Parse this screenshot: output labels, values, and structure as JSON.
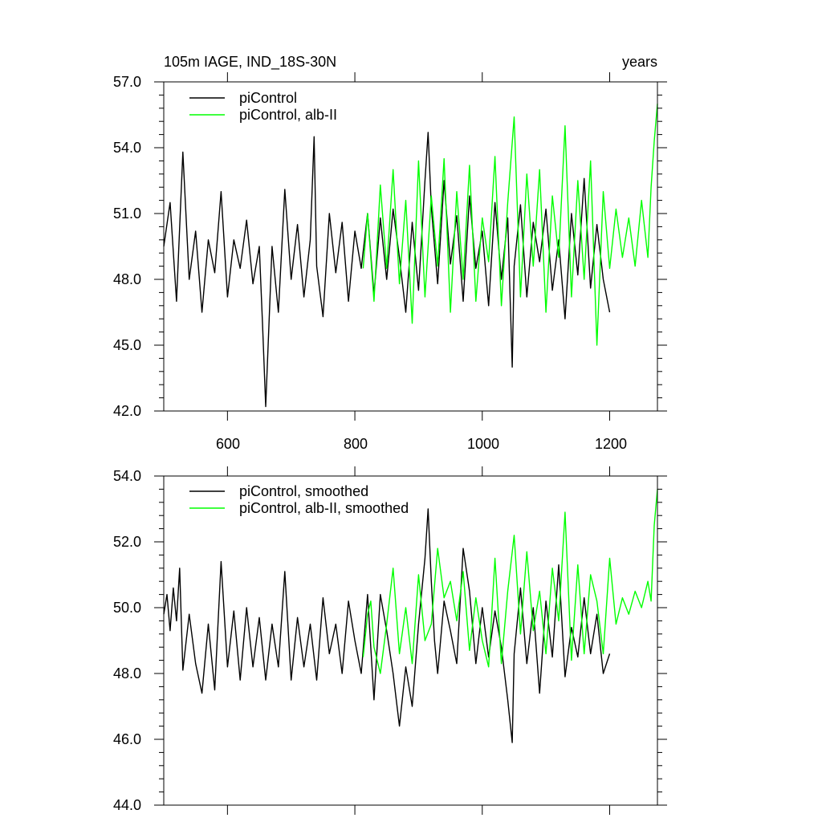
{
  "top_panel": {
    "left_title": "105m IAGE, IND_18S-30N",
    "right_title": "years",
    "y_tick_labels": [
      "42.0",
      "45.0",
      "48.0",
      "51.0",
      "54.0",
      "57.0"
    ],
    "x_tick_labels": [
      "600",
      "800",
      "1000",
      "1200"
    ],
    "legend": [
      "piControl",
      "piControl, alb-II"
    ]
  },
  "bottom_panel": {
    "y_tick_labels": [
      "44.0",
      "46.0",
      "48.0",
      "50.0",
      "52.0",
      "54.0"
    ],
    "legend": [
      "piControl, smoothed",
      "piControl, alb-II, smoothed"
    ]
  },
  "colors": {
    "black": "#000000",
    "green": "#00ff00"
  },
  "chart_data": [
    {
      "type": "line",
      "title": "105m IAGE, IND_18S-30N",
      "right_title": "years",
      "xlim": [
        500,
        1275
      ],
      "ylim": [
        42.0,
        57.0
      ],
      "x_ticks": [
        600,
        800,
        1000,
        1200
      ],
      "y_ticks": [
        42.0,
        45.0,
        48.0,
        51.0,
        54.0,
        57.0
      ],
      "legend_position": "top-left",
      "series": [
        {
          "name": "piControl",
          "color": "#000000",
          "x": [
            500,
            510,
            520,
            530,
            540,
            550,
            560,
            570,
            580,
            590,
            600,
            610,
            620,
            630,
            640,
            650,
            655,
            660,
            670,
            680,
            690,
            700,
            710,
            720,
            730,
            736,
            740,
            750,
            760,
            770,
            780,
            790,
            800,
            810,
            820,
            830,
            840,
            850,
            860,
            870,
            880,
            890,
            900,
            910,
            915,
            920,
            930,
            940,
            950,
            960,
            970,
            980,
            990,
            1000,
            1010,
            1020,
            1030,
            1040,
            1047,
            1050,
            1060,
            1070,
            1080,
            1090,
            1100,
            1110,
            1120,
            1130,
            1140,
            1150,
            1160,
            1170,
            1180,
            1190,
            1200
          ],
          "y": [
            49.5,
            51.5,
            47.0,
            53.8,
            48.0,
            50.2,
            46.5,
            49.8,
            48.3,
            52.0,
            47.2,
            49.8,
            48.5,
            50.7,
            47.8,
            49.5,
            46.0,
            42.2,
            49.5,
            46.5,
            52.1,
            48.0,
            50.5,
            47.2,
            49.8,
            54.5,
            48.6,
            46.3,
            51.0,
            48.3,
            50.6,
            47.0,
            50.2,
            48.5,
            51.0,
            47.3,
            50.8,
            48.0,
            51.2,
            49.0,
            46.5,
            50.6,
            47.5,
            52.5,
            54.7,
            51.3,
            47.8,
            52.5,
            48.7,
            50.9,
            47.0,
            51.8,
            48.5,
            50.2,
            46.8,
            51.5,
            48.0,
            50.8,
            44.0,
            48.6,
            51.4,
            47.2,
            50.6,
            48.8,
            51.2,
            47.5,
            49.8,
            46.2,
            51.0,
            48.2,
            52.6,
            47.6,
            50.5,
            48.0,
            46.5
          ]
        },
        {
          "name": "piControl, alb-II",
          "color": "#00ff00",
          "x": [
            813,
            820,
            830,
            840,
            850,
            860,
            870,
            880,
            890,
            900,
            910,
            920,
            930,
            940,
            950,
            960,
            970,
            980,
            990,
            1000,
            1010,
            1020,
            1030,
            1040,
            1050,
            1060,
            1070,
            1080,
            1090,
            1100,
            1110,
            1120,
            1130,
            1140,
            1150,
            1160,
            1170,
            1180,
            1190,
            1200,
            1210,
            1220,
            1230,
            1240,
            1250,
            1260,
            1265,
            1270,
            1275
          ],
          "y": [
            48.5,
            51.0,
            47.0,
            52.3,
            48.5,
            53.0,
            47.8,
            51.6,
            46.0,
            53.4,
            47.2,
            51.8,
            48.6,
            53.5,
            46.5,
            52.0,
            48.0,
            53.2,
            47.0,
            50.8,
            48.8,
            53.6,
            46.8,
            51.5,
            55.4,
            47.2,
            52.8,
            48.6,
            53.0,
            46.5,
            51.8,
            49.0,
            55.0,
            47.2,
            52.5,
            48.0,
            53.4,
            45.0,
            52.0,
            48.5,
            51.2,
            49.0,
            50.8,
            48.6,
            51.6,
            49.0,
            52.2,
            54.3,
            56.0
          ]
        }
      ]
    },
    {
      "type": "line",
      "xlim": [
        500,
        1275
      ],
      "ylim": [
        44.0,
        54.0
      ],
      "x_ticks": [
        600,
        800,
        1000,
        1200
      ],
      "y_ticks": [
        44.0,
        46.0,
        48.0,
        50.0,
        52.0,
        54.0
      ],
      "legend_position": "top-left",
      "series": [
        {
          "name": "piControl, smoothed",
          "color": "#000000",
          "x": [
            500,
            505,
            510,
            515,
            520,
            525,
            530,
            540,
            550,
            560,
            570,
            580,
            590,
            600,
            610,
            620,
            630,
            640,
            650,
            660,
            670,
            680,
            690,
            700,
            710,
            720,
            730,
            740,
            750,
            760,
            770,
            780,
            790,
            800,
            810,
            820,
            830,
            840,
            850,
            860,
            870,
            880,
            890,
            900,
            910,
            915,
            920,
            925,
            930,
            940,
            950,
            960,
            970,
            980,
            990,
            1000,
            1010,
            1020,
            1030,
            1040,
            1047,
            1050,
            1060,
            1070,
            1080,
            1090,
            1100,
            1110,
            1120,
            1130,
            1140,
            1150,
            1160,
            1170,
            1180,
            1190,
            1200
          ],
          "y": [
            49.8,
            50.4,
            49.3,
            50.6,
            49.6,
            51.2,
            48.1,
            49.8,
            48.3,
            47.4,
            49.5,
            47.5,
            51.4,
            48.2,
            49.9,
            47.8,
            50.0,
            48.2,
            49.7,
            47.8,
            49.5,
            48.2,
            51.1,
            47.8,
            49.7,
            48.2,
            49.5,
            47.8,
            50.3,
            48.6,
            49.5,
            48.0,
            50.2,
            49.0,
            48.0,
            50.4,
            47.2,
            50.4,
            49.3,
            48.0,
            46.4,
            48.2,
            47.0,
            49.5,
            51.5,
            53.0,
            50.8,
            49.0,
            48.0,
            50.2,
            49.3,
            48.3,
            51.8,
            50.5,
            48.3,
            50.0,
            48.5,
            49.9,
            48.8,
            47.2,
            45.9,
            48.6,
            50.6,
            48.3,
            50.0,
            47.4,
            50.2,
            48.5,
            51.3,
            47.9,
            49.4,
            48.5,
            50.3,
            48.6,
            49.8,
            48.0,
            48.6
          ]
        },
        {
          "name": "piControl, alb-II, smoothed",
          "color": "#00ff00",
          "x": [
            813,
            820,
            825,
            830,
            840,
            850,
            860,
            870,
            880,
            890,
            900,
            910,
            920,
            930,
            940,
            950,
            960,
            970,
            980,
            990,
            1000,
            1010,
            1020,
            1030,
            1040,
            1050,
            1060,
            1070,
            1080,
            1090,
            1100,
            1110,
            1120,
            1130,
            1140,
            1150,
            1160,
            1170,
            1180,
            1190,
            1200,
            1210,
            1220,
            1230,
            1240,
            1250,
            1260,
            1265,
            1270,
            1275
          ],
          "y": [
            48.5,
            49.8,
            50.2,
            48.8,
            48.0,
            49.5,
            51.2,
            48.6,
            50.0,
            48.3,
            51.0,
            49.0,
            49.5,
            51.8,
            50.3,
            50.8,
            49.6,
            51.1,
            48.7,
            50.3,
            49.0,
            48.2,
            51.5,
            48.3,
            50.5,
            52.2,
            49.2,
            51.7,
            49.3,
            50.5,
            48.6,
            51.2,
            49.6,
            52.9,
            48.4,
            51.3,
            48.6,
            51.0,
            50.2,
            48.6,
            51.5,
            49.5,
            50.3,
            49.8,
            50.5,
            50.0,
            50.8,
            50.2,
            52.5,
            53.6
          ]
        }
      ]
    }
  ]
}
